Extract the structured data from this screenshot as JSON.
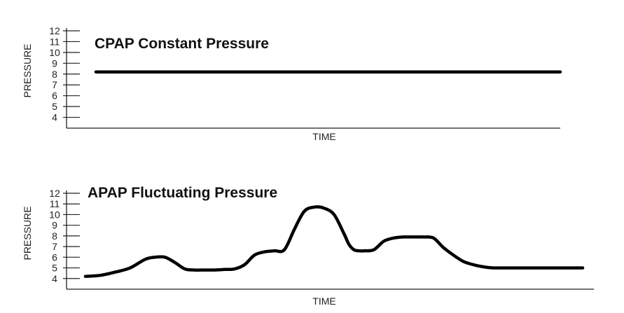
{
  "chart_data": [
    {
      "type": "line",
      "title": "CPAP Constant Pressure",
      "xlabel": "TIME",
      "ylabel": "PRESSURE",
      "yticks": [
        4,
        5,
        6,
        7,
        8,
        9,
        10,
        11,
        12
      ],
      "ylim": [
        3,
        12
      ],
      "xlim": [
        0,
        100
      ],
      "grid": false,
      "series": [
        {
          "x": [
            0,
            100
          ],
          "y": [
            8.2,
            8.2
          ]
        }
      ]
    },
    {
      "type": "line",
      "title": "APAP Fluctuating Pressure",
      "xlabel": "TIME",
      "ylabel": "PRESSURE",
      "yticks": [
        4,
        5,
        6,
        7,
        8,
        9,
        10,
        11,
        12
      ],
      "ylim": [
        3,
        12
      ],
      "xlim": [
        0,
        100
      ],
      "grid": false,
      "series": [
        {
          "x": [
            0,
            3,
            6,
            9,
            12,
            14,
            16,
            18,
            20,
            22,
            24,
            26,
            28,
            30,
            32,
            34,
            36,
            38,
            40,
            42,
            44,
            46,
            48,
            50,
            52,
            53,
            54,
            55,
            56,
            58,
            60,
            62,
            64,
            66,
            68,
            70,
            72,
            74,
            76,
            78,
            80,
            82,
            84,
            86,
            88,
            90,
            92,
            94,
            96,
            98,
            100
          ],
          "y": [
            4.2,
            4.3,
            4.6,
            5.0,
            5.8,
            6.0,
            6.0,
            5.5,
            4.9,
            4.8,
            4.8,
            4.8,
            4.85,
            4.9,
            5.3,
            6.2,
            6.5,
            6.6,
            6.7,
            8.6,
            10.3,
            10.7,
            10.6,
            10.0,
            8.2,
            7.2,
            6.7,
            6.6,
            6.6,
            6.7,
            7.5,
            7.8,
            7.9,
            7.9,
            7.9,
            7.8,
            6.9,
            6.2,
            5.6,
            5.3,
            5.1,
            5.0,
            5.0,
            5.0,
            5.0,
            5.0,
            5.0,
            5.0,
            5.0,
            5.0,
            5.0
          ]
        }
      ]
    }
  ]
}
